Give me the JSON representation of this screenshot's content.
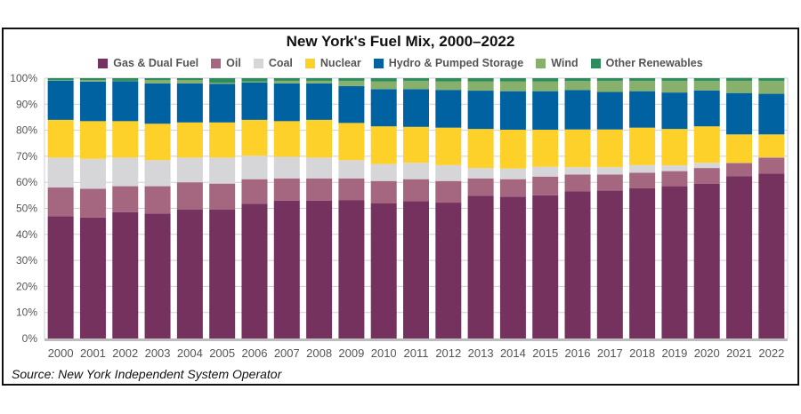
{
  "chart_data": {
    "type": "bar",
    "stacked": true,
    "title": "New York's Fuel Mix, 2000–2022",
    "source": "Source: New York Independent System Operator",
    "categories": [
      "2000",
      "2001",
      "2002",
      "2003",
      "2004",
      "2005",
      "2006",
      "2007",
      "2008",
      "2009",
      "2010",
      "2011",
      "2012",
      "2013",
      "2014",
      "2015",
      "2016",
      "2017",
      "2018",
      "2019",
      "2020",
      "2021",
      "2022"
    ],
    "ylim": [
      0,
      100
    ],
    "yticks": [
      "0%",
      "10%",
      "20%",
      "30%",
      "40%",
      "50%",
      "60%",
      "70%",
      "80%",
      "90%",
      "100%"
    ],
    "grid": true,
    "legend_placement": "top",
    "series": [
      {
        "name": "Gas & Dual Fuel",
        "color": "#76325f",
        "values": [
          47,
          46.5,
          48.5,
          48,
          49.5,
          49.5,
          51.8,
          53,
          53,
          53.2,
          52,
          52.8,
          52.2,
          54.8,
          54.5,
          55,
          56.5,
          56.8,
          57.7,
          58.5,
          59.5,
          62.3,
          63.3
        ]
      },
      {
        "name": "Oil",
        "color": "#a5667f",
        "values": [
          11,
          11,
          10,
          10.5,
          10.5,
          10,
          9.4,
          8.5,
          8.5,
          8.3,
          8.5,
          8.4,
          8.3,
          6.7,
          6.7,
          7.2,
          6.5,
          6.2,
          6,
          5.8,
          6,
          5.1,
          6.2
        ]
      },
      {
        "name": "Coal",
        "color": "#d6d6d8",
        "values": [
          11.5,
          11.5,
          11,
          10,
          9.5,
          10,
          9,
          8.3,
          8,
          7,
          6.5,
          6.3,
          6.1,
          4,
          4.1,
          3.8,
          2.8,
          2.8,
          2.9,
          2.2,
          2,
          0.1,
          0.1
        ]
      },
      {
        "name": "Nuclear",
        "color": "#fdd02a",
        "values": [
          14.5,
          14.5,
          14,
          14,
          13.5,
          13.5,
          13.8,
          13.7,
          14.5,
          14.3,
          14.5,
          13.8,
          14.4,
          15,
          14.9,
          14.2,
          14.5,
          14.5,
          14.4,
          14,
          14,
          10.9,
          8.8
        ]
      },
      {
        "name": "Hydro & Pumped Storage",
        "color": "#0062a0",
        "values": [
          15,
          15.2,
          15.3,
          15.5,
          15,
          14.8,
          14.4,
          14.5,
          14,
          14.2,
          14.3,
          14.5,
          14.5,
          14.7,
          14.8,
          14.8,
          15.1,
          14.4,
          14,
          14,
          13.8,
          15.9,
          15.6
        ]
      },
      {
        "name": "Wind",
        "color": "#86b06c",
        "values": [
          0.2,
          0.6,
          0.2,
          1.3,
          1.3,
          0.5,
          0.4,
          1,
          1,
          2,
          3,
          3.2,
          3.3,
          3.6,
          3.8,
          3.8,
          3.5,
          4.3,
          4,
          4.5,
          3.7,
          4.7,
          5
        ]
      },
      {
        "name": "Other Renewables",
        "color": "#2e8b5e",
        "values": [
          0.8,
          0.7,
          1,
          0.7,
          0.7,
          1.7,
          1.2,
          1,
          1,
          1,
          1.2,
          1,
          1.2,
          1.2,
          1.2,
          1.2,
          1.1,
          1,
          1,
          1,
          1,
          1.1,
          1
        ]
      }
    ]
  }
}
